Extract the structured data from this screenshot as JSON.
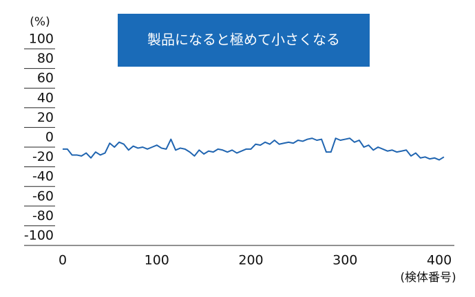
{
  "chart_data": {
    "type": "line",
    "title": "製品になると極めて小さくなる",
    "y_label": "(%)",
    "x_label": "(検体番号)",
    "x": [
      0,
      5,
      10,
      15,
      20,
      25,
      30,
      35,
      40,
      45,
      50,
      55,
      60,
      65,
      70,
      75,
      80,
      85,
      90,
      95,
      100,
      105,
      110,
      115,
      120,
      125,
      130,
      135,
      140,
      145,
      150,
      155,
      160,
      165,
      170,
      175,
      180,
      185,
      190,
      195,
      200,
      205,
      210,
      215,
      220,
      225,
      230,
      235,
      240,
      245,
      250,
      255,
      260,
      265,
      270,
      275,
      280,
      285,
      290,
      295,
      300,
      305,
      310,
      315,
      320,
      325,
      330,
      335,
      340,
      345,
      350,
      355,
      360,
      365,
      370,
      375,
      380,
      385,
      390,
      395,
      400,
      405
    ],
    "series": [
      {
        "name": "",
        "color": "#1f64b0",
        "values": [
          -2,
          -2,
          -8,
          -8,
          -9,
          -6,
          -11,
          -5,
          -8,
          -6,
          4,
          0,
          5,
          3,
          -3,
          1,
          -1,
          0,
          -2,
          0,
          2,
          -1,
          -2,
          8,
          -3,
          -1,
          -2,
          -5,
          -9,
          -3,
          -7,
          -4,
          -5,
          -2,
          -3,
          -5,
          -3,
          -6,
          -4,
          -2,
          -2,
          3,
          2,
          5,
          3,
          7,
          3,
          4,
          5,
          4,
          7,
          6,
          8,
          9,
          7,
          8,
          -5,
          -5,
          9,
          7,
          8,
          9,
          5,
          7,
          0,
          2,
          -3,
          0,
          -2,
          -4,
          -3,
          -5,
          -4,
          -3,
          -9,
          -6,
          -11,
          -10,
          -12,
          -11,
          -13,
          -10
        ]
      }
    ],
    "xlim": [
      0,
      410
    ],
    "xticks": [
      0,
      100,
      200,
      300,
      400
    ],
    "ylim": [
      -100,
      100
    ],
    "yticks": [
      -100,
      -80,
      -60,
      -40,
      -20,
      0,
      20,
      40,
      60,
      80,
      100
    ]
  }
}
